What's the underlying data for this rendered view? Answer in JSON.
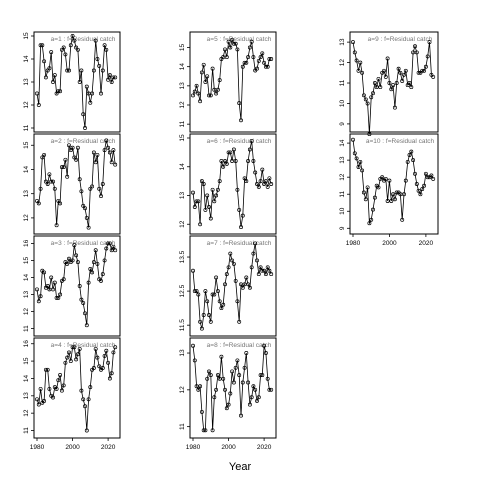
{
  "figure": {
    "xlabel": "Year",
    "xlim": [
      1980,
      2025
    ]
  },
  "chart_data": [
    {
      "type": "line",
      "title": "a=1  :  f=Residual catch",
      "ylim": [
        11,
        15
      ],
      "yticks": [
        11,
        12,
        13,
        14,
        15
      ],
      "xticks": [],
      "x": [
        1980,
        1981,
        1982,
        1983,
        1984,
        1985,
        1986,
        1987,
        1988,
        1989,
        1990,
        1991,
        1992,
        1993,
        1994,
        1995,
        1996,
        1997,
        1998,
        1999,
        2000,
        2001,
        2002,
        2003,
        2004,
        2005,
        2006,
        2007,
        2008,
        2009,
        2010,
        2011,
        2012,
        2013,
        2014,
        2015,
        2016,
        2017,
        2018,
        2019,
        2020,
        2021,
        2022,
        2023,
        2024
      ],
      "y": [
        12.5,
        12.0,
        14.6,
        14.6,
        13.9,
        13.2,
        13.5,
        13.6,
        14.3,
        13.0,
        13.3,
        12.5,
        12.6,
        12.6,
        14.4,
        14.5,
        14.2,
        13.5,
        13.5,
        14.6,
        15.0,
        14.8,
        14.5,
        14.4,
        13.0,
        13.5,
        11.6,
        11.0,
        12.8,
        12.5,
        12.1,
        12.5,
        13.5,
        14.8,
        14.0,
        13.7,
        12.5,
        13.5,
        14.6,
        14.4,
        13.1,
        13.3,
        13.0,
        13.2,
        13.2
      ]
    },
    {
      "type": "line",
      "title": "a=2  :  f=Residual catch",
      "ylim": [
        11.5,
        15.3
      ],
      "yticks": [
        12,
        13,
        14,
        15
      ],
      "xticks": [],
      "x": [
        1980,
        1981,
        1982,
        1983,
        1984,
        1985,
        1986,
        1987,
        1988,
        1989,
        1990,
        1991,
        1992,
        1993,
        1994,
        1995,
        1996,
        1997,
        1998,
        1999,
        2000,
        2001,
        2002,
        2003,
        2004,
        2005,
        2006,
        2007,
        2008,
        2009,
        2010,
        2011,
        2012,
        2013,
        2014,
        2015,
        2016,
        2017,
        2018,
        2019,
        2020,
        2021,
        2022,
        2023,
        2024
      ],
      "y": [
        12.7,
        12.6,
        13.2,
        14.5,
        14.6,
        13.5,
        13.4,
        13.8,
        13.5,
        13.5,
        13.2,
        11.7,
        12.7,
        12.6,
        14.1,
        14.1,
        14.4,
        13.7,
        15.0,
        14.8,
        14.9,
        14.5,
        14.4,
        14.9,
        13.6,
        13.1,
        12.5,
        12.4,
        12.0,
        11.6,
        13.2,
        13.3,
        14.7,
        14.3,
        14.6,
        13.2,
        12.9,
        13.4,
        14.8,
        15.2,
        14.9,
        14.7,
        14.3,
        14.8,
        14.2
      ]
    },
    {
      "type": "line",
      "title": "a=3  :  f=Residual catch",
      "ylim": [
        10.8,
        16.2
      ],
      "yticks": [
        11,
        12,
        13,
        14,
        15,
        16
      ],
      "xticks": [],
      "x": [
        1980,
        1981,
        1982,
        1983,
        1984,
        1985,
        1986,
        1987,
        1988,
        1989,
        1990,
        1991,
        1992,
        1993,
        1994,
        1995,
        1996,
        1997,
        1998,
        1999,
        2000,
        2001,
        2002,
        2003,
        2004,
        2005,
        2006,
        2007,
        2008,
        2009,
        2010,
        2011,
        2012,
        2013,
        2014,
        2015,
        2016,
        2017,
        2018,
        2019,
        2020,
        2021,
        2022,
        2023,
        2024
      ],
      "y": [
        13.3,
        12.6,
        12.9,
        14.4,
        14.3,
        13.4,
        13.5,
        13.3,
        14.0,
        13.3,
        13.7,
        12.8,
        12.8,
        13.0,
        13.8,
        13.9,
        14.9,
        14.8,
        15.1,
        14.9,
        15.0,
        15.9,
        15.3,
        14.9,
        13.5,
        12.7,
        12.5,
        11.9,
        11.2,
        13.7,
        14.5,
        14.3,
        14.9,
        15.6,
        14.8,
        13.9,
        13.8,
        14.2,
        15.0,
        15.7,
        16.0,
        16.0,
        15.6,
        15.8,
        15.6
      ]
    },
    {
      "type": "line",
      "title": "a=4  :  f=Residual catch",
      "ylim": [
        10.8,
        16.1
      ],
      "yticks": [
        11,
        12,
        13,
        14,
        15,
        16
      ],
      "xticks": [
        1980,
        2000,
        2020
      ],
      "x": [
        1980,
        1981,
        1982,
        1983,
        1984,
        1985,
        1986,
        1987,
        1988,
        1989,
        1990,
        1991,
        1992,
        1993,
        1994,
        1995,
        1996,
        1997,
        1998,
        1999,
        2000,
        2001,
        2002,
        2003,
        2004,
        2005,
        2006,
        2007,
        2008,
        2009,
        2010,
        2011,
        2012,
        2013,
        2014,
        2015,
        2016,
        2017,
        2018,
        2019,
        2020,
        2021,
        2022,
        2023,
        2024
      ],
      "y": [
        12.8,
        12.5,
        13.4,
        12.6,
        12.7,
        14.5,
        14.5,
        13.4,
        13.0,
        12.9,
        13.5,
        13.4,
        13.9,
        14.2,
        13.3,
        13.6,
        14.9,
        15.2,
        15.5,
        15.0,
        15.8,
        15.8,
        15.1,
        15.4,
        15.7,
        13.3,
        12.8,
        12.4,
        11.0,
        12.8,
        13.5,
        14.5,
        14.6,
        15.7,
        15.2,
        14.7,
        14.5,
        14.6,
        15.3,
        15.6,
        14.9,
        14.0,
        14.3,
        15.5,
        15.8
      ]
    },
    {
      "type": "line",
      "title": "a=5  :  f=Residual catch",
      "ylim": [
        10.8,
        15.6
      ],
      "yticks": [
        11,
        12,
        13,
        14,
        15
      ],
      "xticks": [],
      "x": [
        1980,
        1981,
        1982,
        1983,
        1984,
        1985,
        1986,
        1987,
        1988,
        1989,
        1990,
        1991,
        1992,
        1993,
        1994,
        1995,
        1996,
        1997,
        1998,
        1999,
        2000,
        2001,
        2002,
        2003,
        2004,
        2005,
        2006,
        2007,
        2008,
        2009,
        2010,
        2011,
        2012,
        2013,
        2014,
        2015,
        2016,
        2017,
        2018,
        2019,
        2020,
        2021,
        2022,
        2023,
        2024
      ],
      "y": [
        12.5,
        12.7,
        13.0,
        12.6,
        12.2,
        13.7,
        14.1,
        13.2,
        13.5,
        12.5,
        12.5,
        13.9,
        12.8,
        12.6,
        12.8,
        13.3,
        14.4,
        14.5,
        14.9,
        14.5,
        15.3,
        15.0,
        15.4,
        15.2,
        15.2,
        14.9,
        12.1,
        11.2,
        14.0,
        14.2,
        14.2,
        14.5,
        15.0,
        15.3,
        14.5,
        13.8,
        13.9,
        14.3,
        14.5,
        14.7,
        14.2,
        14.0,
        14.0,
        14.4,
        14.4
      ]
    },
    {
      "type": "line",
      "title": "a=6  :  f=Residual catch",
      "ylim": [
        11.8,
        15.0
      ],
      "yticks": [
        12,
        13,
        14,
        15
      ],
      "xticks": [],
      "x": [
        1980,
        1981,
        1982,
        1983,
        1984,
        1985,
        1986,
        1987,
        1988,
        1989,
        1990,
        1991,
        1992,
        1993,
        1994,
        1995,
        1996,
        1997,
        1998,
        1999,
        2000,
        2001,
        2002,
        2003,
        2004,
        2005,
        2006,
        2007,
        2008,
        2009,
        2010,
        2011,
        2012,
        2013,
        2014,
        2015,
        2016,
        2017,
        2018,
        2019,
        2020,
        2021,
        2022,
        2023,
        2024
      ],
      "y": [
        13.1,
        12.6,
        12.8,
        12.8,
        12.0,
        13.5,
        13.4,
        12.5,
        13.0,
        12.6,
        12.2,
        13.2,
        12.8,
        13.0,
        13.2,
        13.5,
        14.2,
        14.0,
        14.2,
        14.1,
        14.5,
        14.5,
        14.2,
        14.6,
        14.2,
        13.2,
        12.5,
        11.9,
        12.3,
        13.6,
        13.5,
        14.2,
        14.6,
        14.9,
        14.2,
        13.8,
        13.4,
        13.3,
        13.5,
        13.9,
        13.4,
        13.5,
        13.3,
        13.6,
        13.4
      ]
    },
    {
      "type": "line",
      "title": "a=7  :  f=Residual catch",
      "ylim": [
        11.3,
        14.0
      ],
      "yticks": [
        11.5,
        12.5,
        13.5
      ],
      "xticks": [],
      "x": [
        1980,
        1981,
        1982,
        1983,
        1984,
        1985,
        1986,
        1987,
        1988,
        1989,
        1990,
        1991,
        1992,
        1993,
        1994,
        1995,
        1996,
        1997,
        1998,
        1999,
        2000,
        2001,
        2002,
        2003,
        2004,
        2005,
        2006,
        2007,
        2008,
        2009,
        2010,
        2011,
        2012,
        2013,
        2014,
        2015,
        2016,
        2017,
        2018,
        2019,
        2020,
        2021,
        2022,
        2023,
        2024
      ],
      "y": [
        13.1,
        12.5,
        12.5,
        12.4,
        11.6,
        11.4,
        11.8,
        12.5,
        12.2,
        11.8,
        11.6,
        12.4,
        12.4,
        12.9,
        12.5,
        12.2,
        12.0,
        12.1,
        12.7,
        13.0,
        13.2,
        13.6,
        13.4,
        13.3,
        12.8,
        12.2,
        11.6,
        12.7,
        12.6,
        12.7,
        12.9,
        12.7,
        12.6,
        13.2,
        13.6,
        13.9,
        13.4,
        13.0,
        13.2,
        13.1,
        13.1,
        13.0,
        13.2,
        13.1,
        13.0
      ]
    },
    {
      "type": "line",
      "title": "a=8  :  f=Residual catch",
      "ylim": [
        10.8,
        13.3
      ],
      "yticks": [
        11.0,
        12.0,
        13.0
      ],
      "xticks": [
        1980,
        2000,
        2020
      ],
      "x": [
        1980,
        1981,
        1982,
        1983,
        1984,
        1985,
        1986,
        1987,
        1988,
        1989,
        1990,
        1991,
        1992,
        1993,
        1994,
        1995,
        1996,
        1997,
        1998,
        1999,
        2000,
        2001,
        2002,
        2003,
        2004,
        2005,
        2006,
        2007,
        2008,
        2009,
        2010,
        2011,
        2012,
        2013,
        2014,
        2015,
        2016,
        2017,
        2018,
        2019,
        2020,
        2021,
        2022,
        2023,
        2024
      ],
      "y": [
        13.2,
        12.8,
        12.1,
        12.0,
        12.1,
        11.4,
        10.9,
        10.9,
        12.3,
        12.5,
        12.4,
        10.9,
        11.8,
        12.0,
        12.4,
        12.3,
        12.9,
        12.3,
        12.0,
        11.5,
        11.6,
        11.9,
        12.5,
        12.2,
        12.6,
        12.8,
        12.4,
        11.3,
        12.2,
        12.6,
        13.0,
        12.2,
        11.6,
        11.8,
        12.1,
        12.0,
        11.7,
        11.8,
        12.4,
        12.4,
        13.2,
        13.0,
        12.3,
        12.0,
        12.0
      ]
    },
    {
      "type": "line",
      "title": "a=9  :  f=Residual catch",
      "ylim": [
        8.8,
        13.3
      ],
      "yticks": [
        9,
        10,
        11,
        12,
        13
      ],
      "xticks": [],
      "x": [
        1980,
        1981,
        1982,
        1983,
        1984,
        1985,
        1986,
        1987,
        1988,
        1989,
        1990,
        1991,
        1992,
        1993,
        1994,
        1995,
        1996,
        1997,
        1998,
        1999,
        2000,
        2001,
        2002,
        2003,
        2004,
        2005,
        2006,
        2007,
        2008,
        2009,
        2010,
        2011,
        2012,
        2013,
        2014,
        2015,
        2016,
        2017,
        2018,
        2019,
        2020,
        2021,
        2022,
        2023,
        2024
      ],
      "y": [
        13.0,
        12.5,
        12.1,
        11.6,
        12.0,
        11.5,
        10.4,
        10.2,
        10.0,
        8.5,
        10.3,
        10.5,
        11.0,
        10.8,
        11.2,
        10.8,
        11.5,
        11.6,
        11.3,
        12.2,
        11.0,
        10.7,
        10.9,
        9.8,
        11.0,
        11.7,
        11.5,
        11.1,
        11.4,
        11.6,
        10.9,
        11.0,
        10.8,
        12.5,
        12.8,
        12.5,
        11.5,
        11.5,
        11.6,
        11.6,
        11.8,
        12.3,
        13.0,
        11.4,
        11.3
      ]
    },
    {
      "type": "line",
      "title": "a=10  :  f=Residual catch",
      "ylim": [
        8.9,
        14.3
      ],
      "yticks": [
        9,
        10,
        11,
        12,
        13,
        14
      ],
      "xticks": [
        1980,
        2000,
        2020
      ],
      "x": [
        1980,
        1981,
        1982,
        1983,
        1984,
        1985,
        1986,
        1987,
        1988,
        1989,
        1990,
        1991,
        1992,
        1993,
        1994,
        1995,
        1996,
        1997,
        1998,
        1999,
        2000,
        2001,
        2002,
        2003,
        2004,
        2005,
        2006,
        2007,
        2008,
        2009,
        2010,
        2011,
        2012,
        2013,
        2014,
        2015,
        2016,
        2017,
        2018,
        2019,
        2020,
        2021,
        2022,
        2023,
        2024
      ],
      "y": [
        14.2,
        13.4,
        13.1,
        12.6,
        12.9,
        12.4,
        11.1,
        10.7,
        11.4,
        9.3,
        9.5,
        10.1,
        10.8,
        11.5,
        11.4,
        11.9,
        12.0,
        11.8,
        11.9,
        10.6,
        11.8,
        10.6,
        11.0,
        10.7,
        11.1,
        11.1,
        11.0,
        9.5,
        11.0,
        11.8,
        12.9,
        13.3,
        13.5,
        13.0,
        12.2,
        11.6,
        11.2,
        11.0,
        11.3,
        11.5,
        12.2,
        12.0,
        12.0,
        12.1,
        11.9
      ]
    }
  ]
}
